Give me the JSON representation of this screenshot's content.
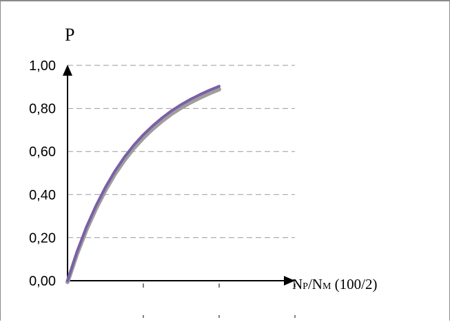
{
  "chart_data": {
    "type": "line",
    "title": "",
    "ylabel": "P",
    "xlabel": {
      "main": "N",
      "sub1": "P",
      "sep": "/N",
      "sub2": "M",
      "rest": " (100/2)"
    },
    "ylim": [
      0,
      1
    ],
    "xlim": [
      0,
      3
    ],
    "yticks": [
      "0,00",
      "0,20",
      "0,40",
      "0,60",
      "0,80",
      "1,00"
    ],
    "ytick_values": [
      0,
      0.2,
      0.4,
      0.6,
      0.8,
      1.0
    ],
    "xtick_values": [
      0,
      1,
      2,
      3
    ],
    "grid": "horizontal dashed",
    "series": [
      {
        "color": "#9e9e9e",
        "x": [
          0,
          0.125,
          0.25,
          0.375,
          0.5,
          0.625,
          0.75,
          0.875,
          1.0,
          1.125,
          1.25,
          1.375,
          1.5,
          1.625,
          1.75,
          1.875,
          2.0
        ],
        "y": [
          0,
          0.131,
          0.244,
          0.341,
          0.427,
          0.502,
          0.566,
          0.622,
          0.67,
          0.712,
          0.749,
          0.782,
          0.81,
          0.835,
          0.857,
          0.877,
          0.895
        ]
      },
      {
        "color": "#7b5fa6",
        "x": [
          0,
          0.125,
          0.25,
          0.375,
          0.5,
          0.625,
          0.75,
          0.875,
          1.0,
          1.125,
          1.25,
          1.375,
          1.5,
          1.625,
          1.75,
          1.875,
          2.0
        ],
        "y": [
          0,
          0.135,
          0.25,
          0.348,
          0.434,
          0.509,
          0.574,
          0.63,
          0.678,
          0.72,
          0.757,
          0.79,
          0.818,
          0.843,
          0.865,
          0.885,
          0.903
        ]
      }
    ]
  }
}
